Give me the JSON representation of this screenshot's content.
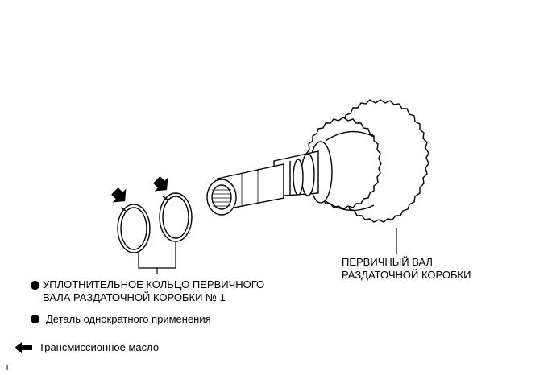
{
  "labels": {
    "shaft_line1": "ПЕРВИЧНЫЙ ВАЛ",
    "shaft_line2": "РАЗДАТОЧНОЙ КОРОБКИ",
    "ring_line1": "УПЛОТНИТЕЛЬНОЕ КОЛЬЦО ПЕРВИЧНОГО",
    "ring_line2": "ВАЛА РАЗДАТОЧНОЙ КОРОБКИ № 1"
  },
  "legend": {
    "single_use": "Деталь однократного применения",
    "transmission_oil": "Трансмиссионное масло"
  },
  "corner_mark": "T"
}
